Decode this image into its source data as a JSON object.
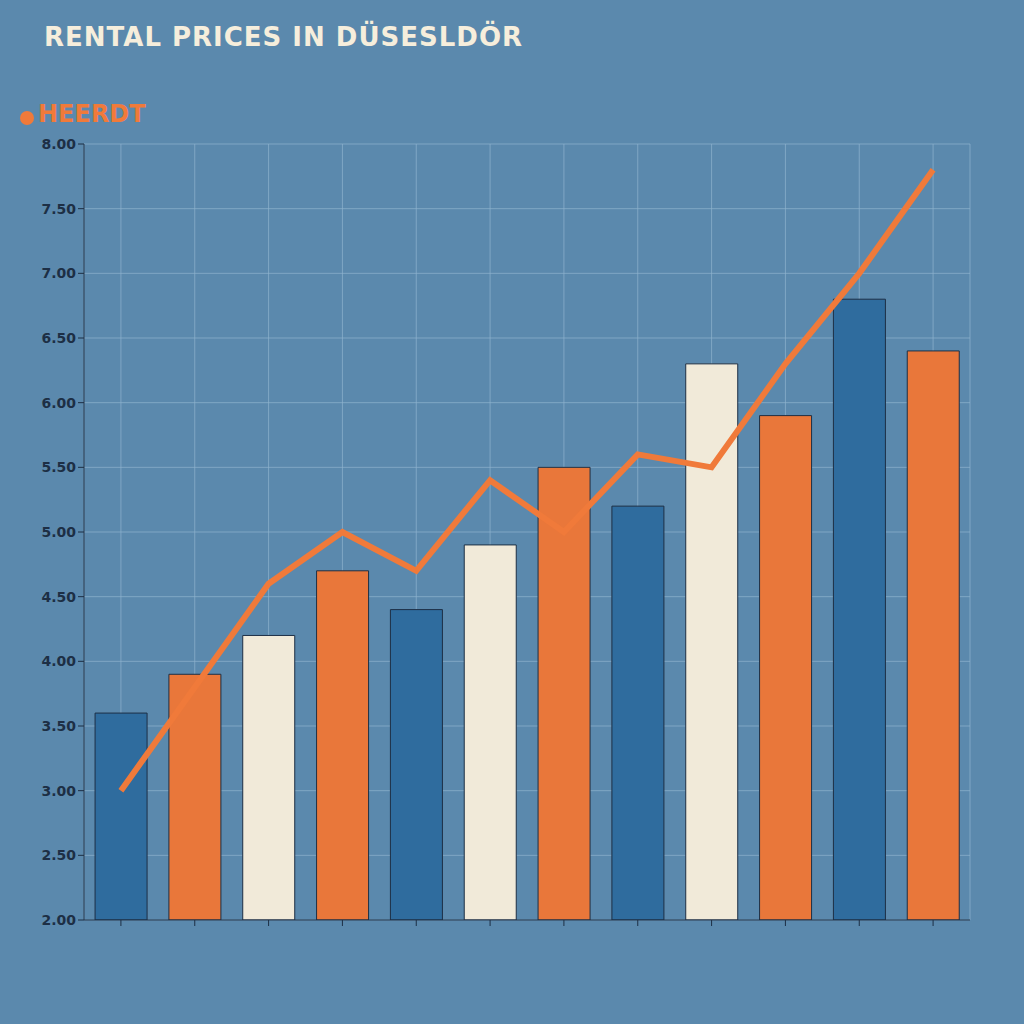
{
  "chart_data": {
    "type": "bar",
    "title": "RENTAL PRICES IN DÜSESLDÖR",
    "categories": [
      null,
      null,
      null,
      null,
      null,
      null,
      null,
      null,
      null,
      null,
      null,
      null
    ],
    "values": [
      3.6,
      3.9,
      4.2,
      4.7,
      4.4,
      4.9,
      5.5,
      5.2,
      6.3,
      5.9,
      6.8,
      6.4
    ],
    "colors": [
      "#2f6c9e",
      "#e9773a",
      "#f1ead9",
      "#e9773a",
      "#2f6c9e",
      "#f1ead9",
      "#e9773a",
      "#2f6c9e",
      "#f1ead9",
      "#e9773a",
      "#2f6c9e",
      "#e9773a"
    ],
    "series": [
      {
        "name": "HEERDT",
        "type": "line",
        "color": "#f07a3a",
        "values": [
          3.0,
          3.8,
          4.6,
          5.0,
          4.7,
          5.4,
          5.0,
          5.6,
          5.5,
          6.3,
          7.0,
          7.8
        ]
      }
    ],
    "ylim": [
      2,
      8
    ],
    "yticks": [
      {
        "value": 2,
        "label": "2.00"
      },
      {
        "value": 2.5,
        "label": "2.50"
      },
      {
        "value": 3,
        "label": "3.00"
      },
      {
        "value": 3.5,
        "label": "3.50"
      },
      {
        "value": 4,
        "label": "4.00"
      },
      {
        "value": 4.5,
        "label": "4.50"
      },
      {
        "value": 5,
        "label": "5.00"
      },
      {
        "value": 5.5,
        "label": "5.50"
      },
      {
        "value": 6,
        "label": "6.00"
      },
      {
        "value": 6.5,
        "label": "6.50"
      },
      {
        "value": 7,
        "label": "7.00"
      },
      {
        "value": 7.5,
        "label": "7.50"
      },
      {
        "value": 8,
        "label": "8.00"
      }
    ],
    "grid": true,
    "legend": "top-left"
  }
}
